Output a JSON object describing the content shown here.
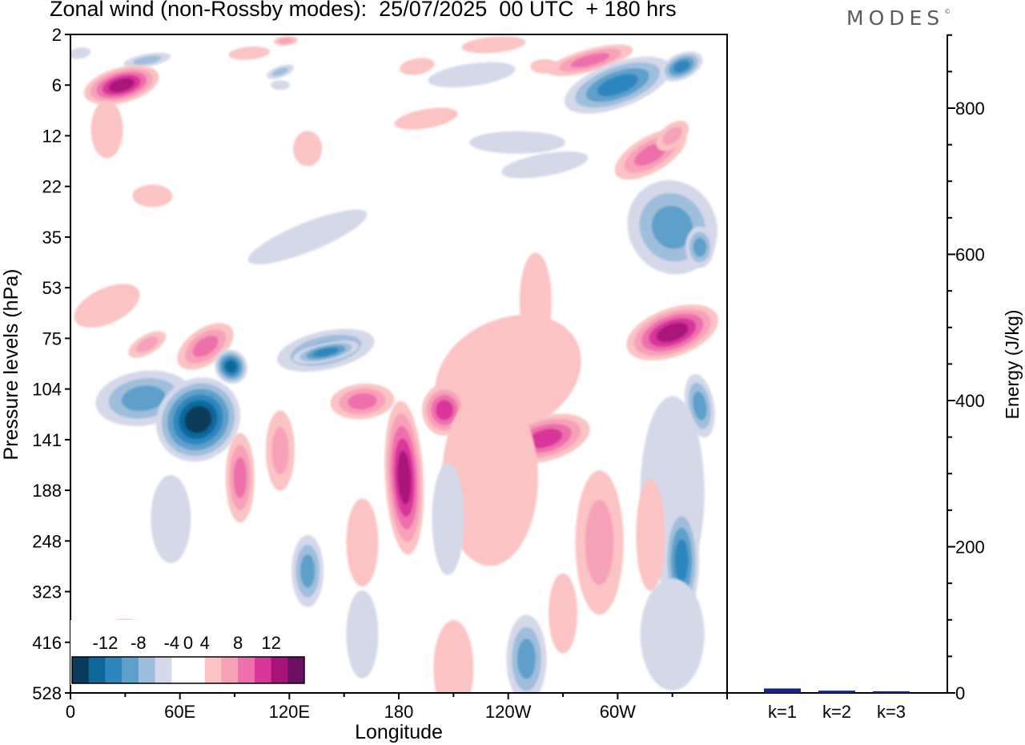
{
  "title": "Zonal wind (non-Rossby modes):  25/07/2025  00 UTC  + 180 hrs",
  "brand": "MODES",
  "brand_mark": "©",
  "chart_data": [
    {
      "type": "heatmap",
      "title": "Zonal wind (non-Rossby modes):  25/07/2025  00 UTC  + 180 hrs",
      "xlabel": "Longitude",
      "ylabel": "Pressure levels (hPa)",
      "xticks": [
        {
          "lon": 0,
          "label": "0"
        },
        {
          "lon": 60,
          "label": "60E"
        },
        {
          "lon": 120,
          "label": "120E"
        },
        {
          "lon": 180,
          "label": "180"
        },
        {
          "lon": 240,
          "label": "120W"
        },
        {
          "lon": 300,
          "label": "60W"
        }
      ],
      "xlim": [
        0,
        360
      ],
      "yticks": [
        "2",
        "6",
        "12",
        "22",
        "35",
        "53",
        "75",
        "104",
        "141",
        "188",
        "248",
        "323",
        "416",
        "528"
      ],
      "colorbar": {
        "labels": [
          "-12",
          "-8",
          "-4",
          "0",
          "4",
          "8",
          "12"
        ],
        "levels": [
          -14,
          -12,
          -10,
          -8,
          -6,
          -4,
          -2,
          2,
          4,
          6,
          8,
          10,
          12,
          14
        ],
        "colors": [
          "#0b3b5a",
          "#0d679c",
          "#2f86bf",
          "#5f9fcb",
          "#9fbedb",
          "#d4d8e9",
          "#ffffff",
          "#ffffff",
          "#fbc3c3",
          "#f7a1b9",
          "#ed6fac",
          "#d9369a",
          "#a8137a",
          "#6b1060"
        ]
      },
      "features": [
        {
          "name": "negative-core",
          "lon": 70,
          "level": 130,
          "value": -14
        },
        {
          "name": "negative-band",
          "lon": 140,
          "level": 80,
          "value": -9
        },
        {
          "name": "negative-upper",
          "lon": 305,
          "level": 6,
          "value": -10
        },
        {
          "name": "positive-upper",
          "lon": 25,
          "level": 6,
          "value": 11
        },
        {
          "name": "positive-mid",
          "lon": 183,
          "level": 160,
          "value": 10
        },
        {
          "name": "positive-east",
          "lon": 345,
          "level": 75,
          "value": 10
        },
        {
          "name": "positive-ridge",
          "lon": 205,
          "level": 120,
          "value": 8
        },
        {
          "name": "positive-band",
          "lon": 260,
          "level": 140,
          "value": 7
        },
        {
          "name": "negative-lower",
          "lon": 335,
          "level": 280,
          "value": -6
        }
      ]
    },
    {
      "type": "bar",
      "ylabel": "Energy (J/kg)",
      "categories": [
        "k=1",
        "k=2",
        "k=3"
      ],
      "values": [
        5,
        2,
        1
      ],
      "ylim": [
        0,
        900
      ],
      "yticks": [
        "0",
        "200",
        "400",
        "600",
        "800"
      ],
      "bar_color": "#1a237e"
    }
  ]
}
